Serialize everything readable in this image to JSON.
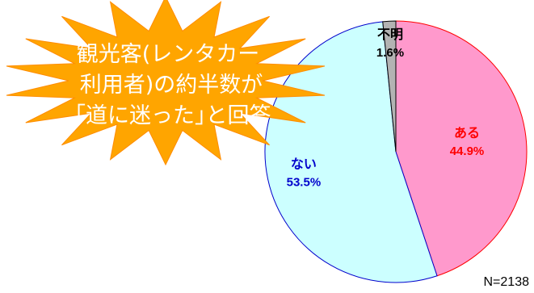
{
  "chart_data": {
    "type": "pie",
    "slices": [
      {
        "label": "ある",
        "value": 44.9,
        "value_label": "44.9%",
        "fill": "#ff99cc",
        "stroke": "#ff0000",
        "text_color": "#ff0000"
      },
      {
        "label": "ない",
        "value": 53.5,
        "value_label": "53.5%",
        "fill": "#ccffff",
        "stroke": "#0000cc",
        "text_color": "#0000cc"
      },
      {
        "label": "不明",
        "value": 1.6,
        "value_label": "1.6%",
        "fill": "#b3b3b3",
        "stroke": "#000000",
        "text_color": "#000000"
      }
    ],
    "start_angle_deg": 0,
    "direction": "clockwise",
    "sample_size": "N=2138",
    "legend": "none"
  },
  "callout": {
    "lines": [
      "観光客(レンタカー",
      "利用者)の約半数が",
      "｢道に迷った｣と回答"
    ],
    "fill": "#ffa500",
    "text_color": "#ffffff"
  }
}
